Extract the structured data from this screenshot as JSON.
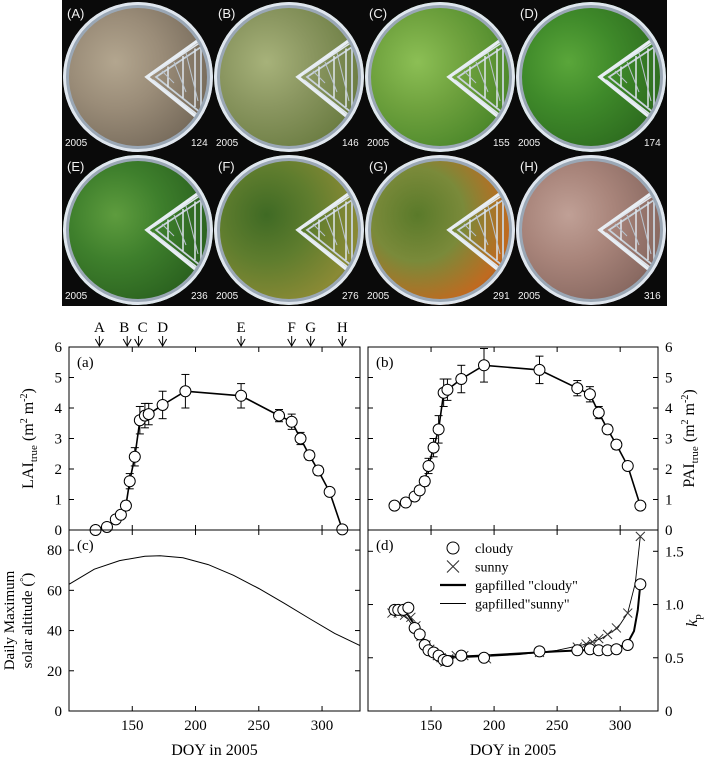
{
  "photos": {
    "items": [
      {
        "label": "(A)",
        "year": "2005",
        "doy": "124",
        "colors": [
          "#9a8c78",
          "#7a6e5e",
          "#b3a68f"
        ]
      },
      {
        "label": "(B)",
        "year": "2005",
        "doy": "146",
        "colors": [
          "#8a9660",
          "#6e7f45",
          "#a7b27a"
        ]
      },
      {
        "label": "(C)",
        "year": "2005",
        "doy": "155",
        "colors": [
          "#6fa23e",
          "#4f8a2c",
          "#8cbf55"
        ]
      },
      {
        "label": "(D)",
        "year": "2005",
        "doy": "174",
        "colors": [
          "#3f8a2a",
          "#2f6f20",
          "#5aa63a"
        ]
      },
      {
        "label": "(E)",
        "year": "2005",
        "doy": "236",
        "colors": [
          "#3e7f2c",
          "#2c6420",
          "#5e9c3e"
        ]
      },
      {
        "label": "(F)",
        "year": "2005",
        "doy": "276",
        "colors": [
          "#5f7d2e",
          "#8a8a35",
          "#3f6a24"
        ]
      },
      {
        "label": "(G)",
        "year": "2005",
        "doy": "291",
        "colors": [
          "#7a8a3a",
          "#c06a20",
          "#5a7a2a"
        ]
      },
      {
        "label": "(H)",
        "year": "2005",
        "doy": "316",
        "colors": [
          "#a8847a",
          "#8a6a62",
          "#c0a096"
        ]
      }
    ]
  },
  "chart_data": [
    {
      "panel_label": "(a)",
      "type": "line",
      "xlim": [
        100,
        330
      ],
      "ylim": [
        0,
        6
      ],
      "yticks": [
        "0",
        "1",
        "2",
        "3",
        "4",
        "5",
        "6"
      ],
      "ylabel_main": "LAI",
      "ylabel_sub": "true",
      "ylabel_unit": " (m",
      "ylabel_sup1": "2",
      "ylabel_mid": " m",
      "ylabel_sup2": "-2",
      "ylabel_end": ")",
      "x": [
        121,
        130,
        137,
        141,
        145,
        148,
        152,
        156,
        160,
        163,
        174,
        192,
        236,
        266,
        276,
        283,
        290,
        297,
        306,
        316
      ],
      "y": [
        0.0,
        0.1,
        0.35,
        0.5,
        0.8,
        1.6,
        2.4,
        3.6,
        3.75,
        3.8,
        4.1,
        4.55,
        4.4,
        3.75,
        3.55,
        3.0,
        2.45,
        1.95,
        1.25,
        0.02
      ],
      "err": [
        0,
        0,
        0.1,
        0.1,
        0.15,
        0.25,
        0.3,
        0.45,
        0.4,
        0.35,
        0.45,
        0.55,
        0.4,
        0.2,
        0.25,
        0.2,
        0.15,
        0.15,
        0.1,
        0
      ]
    },
    {
      "panel_label": "(b)",
      "type": "line",
      "xlim": [
        100,
        330
      ],
      "ylim": [
        0,
        6
      ],
      "yticks": [
        "0",
        "1",
        "2",
        "3",
        "4",
        "5",
        "6"
      ],
      "ylabel_main": "PAI",
      "ylabel_sub": "true",
      "ylabel_unit": " (m",
      "ylabel_sup1": "2",
      "ylabel_mid": " m",
      "ylabel_sup2": "-2",
      "ylabel_end": ")",
      "x": [
        121,
        130,
        137,
        141,
        145,
        148,
        152,
        156,
        160,
        163,
        174,
        192,
        236,
        266,
        276,
        283,
        290,
        297,
        306,
        316
      ],
      "y": [
        0.8,
        0.9,
        1.1,
        1.3,
        1.6,
        2.1,
        2.7,
        3.3,
        4.5,
        4.6,
        4.95,
        5.4,
        5.25,
        4.65,
        4.45,
        3.85,
        3.3,
        2.8,
        2.1,
        0.8
      ],
      "err": [
        0,
        0,
        0.1,
        0.1,
        0.15,
        0.25,
        0.3,
        0.45,
        0.45,
        0.35,
        0.45,
        0.55,
        0.45,
        0.25,
        0.25,
        0.2,
        0.15,
        0.15,
        0.1,
        0
      ]
    },
    {
      "panel_label": "(c)",
      "type": "line",
      "xlim": [
        100,
        330
      ],
      "ylim": [
        0,
        90
      ],
      "xticks": [
        "150",
        "200",
        "250",
        "300"
      ],
      "yticks": [
        "0",
        "20",
        "40",
        "60",
        "80"
      ],
      "xlabel": "DOY in 2005",
      "ylabel_line1": "Daily Maximum",
      "ylabel_line2": "solar altitude (",
      "ylabel_deg": "°",
      "ylabel_close": ")",
      "x": [
        100,
        120,
        140,
        160,
        172,
        190,
        210,
        230,
        250,
        270,
        290,
        310,
        330
      ],
      "y": [
        63,
        70.5,
        74.8,
        76.9,
        77.2,
        76.2,
        72.8,
        67.5,
        60.9,
        53.6,
        46.0,
        38.6,
        32.5
      ]
    },
    {
      "panel_label": "(d)",
      "type": "line",
      "xlim": [
        100,
        330
      ],
      "ylim": [
        0,
        1.7
      ],
      "xticks": [
        "150",
        "200",
        "250",
        "300"
      ],
      "yticks": [
        "0",
        "0.5",
        "1.0",
        "1.5"
      ],
      "xlabel": "DOY in 2005",
      "ylabel_italic": "k",
      "ylabel_sub": "p",
      "legend": [
        {
          "marker": "circle",
          "label": "cloudy"
        },
        {
          "marker": "cross",
          "label": "sunny"
        },
        {
          "marker": "thick-line",
          "label": "gapfilled \"cloudy\""
        },
        {
          "marker": "thin-line",
          "label": "gapfilled\"sunny\""
        }
      ],
      "series": [
        {
          "name": "cloudy",
          "x": [
            121,
            124,
            128,
            132,
            137,
            141,
            145,
            148,
            152,
            156,
            160,
            163,
            174,
            192,
            236,
            266,
            276,
            283,
            290,
            297,
            306,
            316
          ],
          "y": [
            0.95,
            0.95,
            0.95,
            0.97,
            0.78,
            0.72,
            0.62,
            0.57,
            0.55,
            0.52,
            0.48,
            0.47,
            0.52,
            0.5,
            0.56,
            0.57,
            0.58,
            0.57,
            0.57,
            0.58,
            0.62,
            1.19
          ]
        },
        {
          "name": "sunny",
          "x": [
            119,
            124,
            129,
            134,
            138,
            142,
            146,
            149,
            152,
            155,
            158,
            161,
            164,
            170,
            176,
            194,
            236,
            266,
            273,
            278,
            283,
            290,
            297,
            306,
            316
          ],
          "y": [
            0.92,
            0.92,
            0.9,
            0.88,
            0.8,
            0.7,
            0.62,
            0.58,
            0.55,
            0.52,
            0.5,
            0.46,
            0.49,
            0.52,
            0.52,
            0.49,
            0.55,
            0.6,
            0.63,
            0.65,
            0.68,
            0.72,
            0.78,
            0.92,
            1.64
          ]
        },
        {
          "name": "gapfilled \"cloudy\"",
          "x": [
            119,
            125,
            132,
            140,
            147,
            154,
            160,
            170,
            190,
            220,
            250,
            270,
            290,
            305,
            311,
            314,
            316
          ],
          "y": [
            0.95,
            0.95,
            0.9,
            0.75,
            0.62,
            0.55,
            0.52,
            0.51,
            0.52,
            0.54,
            0.56,
            0.57,
            0.58,
            0.62,
            0.75,
            0.95,
            1.19
          ]
        },
        {
          "name": "gapfilled\"sunny\"",
          "x": [
            119,
            125,
            132,
            140,
            147,
            154,
            160,
            170,
            190,
            220,
            250,
            270,
            285,
            298,
            306,
            312,
            316
          ],
          "y": [
            0.93,
            0.92,
            0.86,
            0.72,
            0.6,
            0.53,
            0.5,
            0.5,
            0.51,
            0.53,
            0.57,
            0.62,
            0.68,
            0.78,
            0.92,
            1.2,
            1.64
          ]
        }
      ]
    }
  ],
  "markers": [
    {
      "label": "A",
      "doy": 124
    },
    {
      "label": "B",
      "doy": 146
    },
    {
      "label": "C",
      "doy": 155
    },
    {
      "label": "D",
      "doy": 174
    },
    {
      "label": "E",
      "doy": 236
    },
    {
      "label": "F",
      "doy": 276
    },
    {
      "label": "G",
      "doy": 291
    },
    {
      "label": "H",
      "doy": 316
    }
  ]
}
